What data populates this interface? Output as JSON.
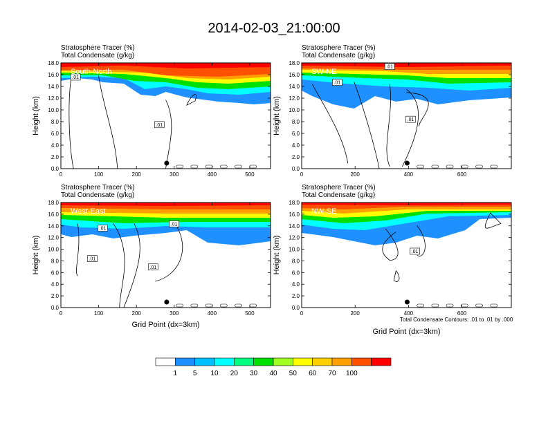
{
  "title": "2014-02-03_21:00:00",
  "colors": {
    "levels": [
      "#ffffff",
      "#1e90ff",
      "#00bfff",
      "#00ffff",
      "#00ff80",
      "#00e000",
      "#a0ff20",
      "#ffff00",
      "#ffd000",
      "#ffa000",
      "#ff5000",
      "#ff0000"
    ],
    "contour": "#000000"
  },
  "colorbar": {
    "labels": [
      "1",
      "5",
      "10",
      "20",
      "30",
      "40",
      "50",
      "60",
      "70",
      "100"
    ]
  },
  "footnote": "Total Condensate Contours: .01 to .01 by .000",
  "chart_data": [
    {
      "type": "heatmap",
      "label1": "Stratosphere Tracer   (%)",
      "label2": "Total Condensate   (g/kg)",
      "panel_title": "South-North",
      "ylabel": "Height (km)",
      "xlabel": "",
      "xlim": [
        0,
        555
      ],
      "ylim": [
        0,
        18
      ],
      "xticks": [
        "0",
        "100",
        "200",
        "300",
        "400",
        "500"
      ],
      "yticks": [
        "0.0",
        "2.0",
        "4.0",
        "6.0",
        "8.0",
        "10.0",
        "12.0",
        "14.0",
        "16.0",
        "18.0"
      ],
      "marker_x": 280,
      "contour_labels": [
        ".01",
        ".01"
      ]
    },
    {
      "type": "heatmap",
      "label1": "Stratosphere Tracer   (%)",
      "label2": "Total Condensate   (g/kg)",
      "panel_title": "SW-NE",
      "ylabel": "Height (km)",
      "xlabel": "",
      "xlim": [
        0,
        785
      ],
      "ylim": [
        0,
        18
      ],
      "xticks": [
        "0",
        "200",
        "400",
        "600"
      ],
      "yticks": [
        "0.0",
        "2.0",
        "4.0",
        "6.0",
        "8.0",
        "10.0",
        "12.0",
        "14.0",
        "16.0",
        "18.0"
      ],
      "marker_x": 395,
      "contour_labels": [
        ".01",
        ".01",
        ".01"
      ]
    },
    {
      "type": "heatmap",
      "label1": "Stratosphere Tracer   (%)",
      "label2": "Total Condensate   (g/kg)",
      "panel_title": "West-East",
      "ylabel": "Height (km)",
      "xlabel": "Grid Point (dx=3km)",
      "xlim": [
        0,
        555
      ],
      "ylim": [
        0,
        18
      ],
      "xticks": [
        "0",
        "100",
        "200",
        "300",
        "400",
        "500"
      ],
      "yticks": [
        "0.0",
        "2.0",
        "4.0",
        "6.0",
        "8.0",
        "10.0",
        "12.0",
        "14.0",
        "16.0",
        "18.0"
      ],
      "marker_x": 280,
      "contour_labels": [
        ".01",
        ".01",
        ".01",
        ".01"
      ]
    },
    {
      "type": "heatmap",
      "label1": "Stratosphere Tracer   (%)",
      "label2": "Total Condensate   (g/kg)",
      "panel_title": "NW-SE",
      "ylabel": "Height (km)",
      "xlabel": "Grid Point (dx=3km)",
      "xlim": [
        0,
        785
      ],
      "ylim": [
        0,
        18
      ],
      "xticks": [
        "0",
        "200",
        "400",
        "600"
      ],
      "yticks": [
        "0.0",
        "2.0",
        "4.0",
        "6.0",
        "8.0",
        "10.0",
        "12.0",
        "14.0",
        "16.0",
        "18.0"
      ],
      "marker_x": 395,
      "contour_labels": [
        ".01"
      ]
    }
  ]
}
